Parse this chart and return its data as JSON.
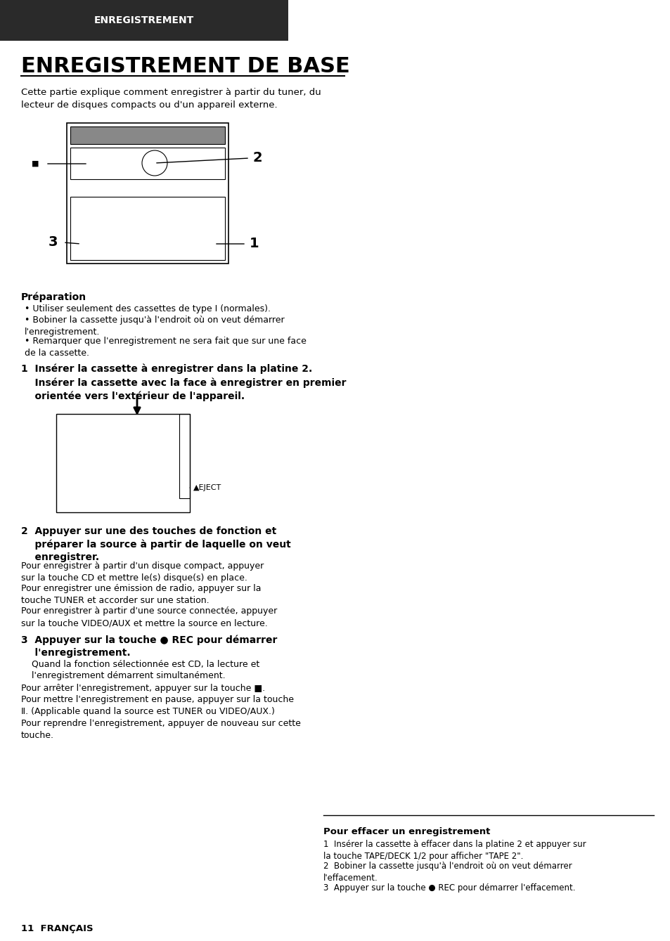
{
  "background_color": "#ffffff",
  "header_bg": "#2a2a2a",
  "header_text": "ENREGISTREMENT",
  "header_text_color": "#ffffff",
  "title": "ENREGISTREMENT DE BASE",
  "title_underline": true,
  "intro_text": "Cette partie explique comment enregistrer à partir du tuner, du\nlecteur de disques compacts ou d'un appareil externe.",
  "prep_title": "Préparation",
  "prep_bullets": [
    "Utiliser seulement des cassettes de type I (normales).",
    "Bobiner la cassette jusqu'à l'endroit où on veut démarrer\nl'enregistrement.",
    "Remarquer que l'enregistrement ne sera fait que sur une face\nde la cassette."
  ],
  "step1_bold": "1  Insérer la cassette à enregistrer dans la platine 2.",
  "step1_sub": "    Insérer la cassette avec la face à enregistrer en premier\n    orientée vers l'extérieur de l'appareil.",
  "eject_label": "▲EJECT",
  "step2_bold": "2  Appuyer sur une des touches de fonction et\n    préparer la source à partir de laquelle on veut\n    enregistrer.",
  "step2_sub1_bold": "Pour enregistrer à partir d'un disque compact,",
  "step2_sub1_rest": " appuyer\nsur la touche CD et mettre le(s) disque(s) en place.",
  "step2_sub2_bold": "Pour enregistrer une émission de radio,",
  "step2_sub2_rest": " appuyer sur la\ntouche TUNER et accorder sur une station.",
  "step2_sub3_bold": "Pour enregistrer à partir d'une source connectée,",
  "step2_sub3_rest": " appuyer\nsur la touche VIDEO/AUX et mettre la source en lecture.",
  "step3_bold": "3  Appuyer sur la touche ● REC pour démarrer\n    l'enregistrement.",
  "step3_sub": "Quand la fonction sélectionnée est CD, la lecture et\nl'enregistrement démarrent simultanément.",
  "stop_bold": "Pour arrêter l'enregistrement,",
  "stop_rest": " appuyer sur la touche ■.",
  "pause_bold": "Pour mettre l'enregistrement en pause,",
  "pause_rest": " appuyer sur la touche\nⅡ. (Applicable quand la source est TUNER ou VIDEO/AUX.)\nPour reprendre l'enregistrement, appuyer de nouveau sur cette\ntouche.",
  "erase_title": "Pour effacer un enregistrement",
  "erase_steps": [
    "Insérer la cassette à effacer dans la platine 2 et appuyer sur\nla touche TAPE/DECK 1/2 pour afficher \"TAPE 2\".",
    "Bobiner la cassette jusqu'à l'endroit où on veut démarrer\nl'effacement.",
    "Appuyer sur la touche ● REC pour démarrer l'effacement."
  ],
  "page_label": "11  FRANÇAIS"
}
